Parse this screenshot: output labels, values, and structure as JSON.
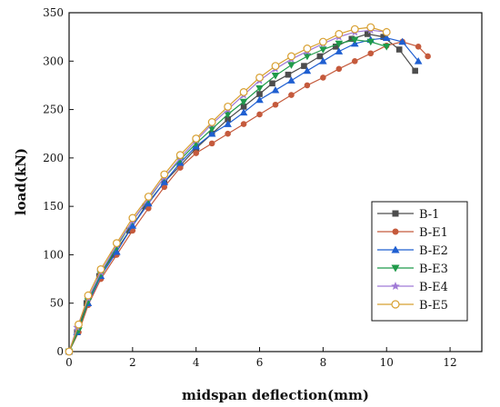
{
  "chart_data": {
    "type": "line",
    "title": "",
    "xlabel": "midspan deflection(mm)",
    "ylabel": "load(kN)",
    "xlim": [
      0,
      13
    ],
    "ylim": [
      0,
      350
    ],
    "xticks": [
      0,
      2,
      4,
      6,
      8,
      10,
      12
    ],
    "yticks": [
      0,
      50,
      100,
      150,
      200,
      250,
      300,
      350
    ],
    "grid": false,
    "legend_position": "bottom-right",
    "series": [
      {
        "name": "B-1",
        "color": "#4d4d4d",
        "marker": "square",
        "points": [
          [
            0,
            0
          ],
          [
            0.25,
            20
          ],
          [
            0.55,
            50
          ],
          [
            0.95,
            78
          ],
          [
            1.4,
            100
          ],
          [
            1.9,
            125
          ],
          [
            2.4,
            150
          ],
          [
            3.0,
            175
          ],
          [
            3.5,
            192
          ],
          [
            4.0,
            210
          ],
          [
            4.5,
            225
          ],
          [
            5.0,
            240
          ],
          [
            5.5,
            253
          ],
          [
            6.0,
            266
          ],
          [
            6.4,
            277
          ],
          [
            6.9,
            286
          ],
          [
            7.4,
            295
          ],
          [
            7.9,
            305
          ],
          [
            8.4,
            315
          ],
          [
            8.9,
            323
          ],
          [
            9.4,
            328
          ],
          [
            9.9,
            325
          ],
          [
            10.4,
            312
          ],
          [
            10.9,
            290
          ]
        ]
      },
      {
        "name": "B-E1",
        "color": "#c55a3c",
        "marker": "circle",
        "points": [
          [
            0,
            0
          ],
          [
            0.3,
            20
          ],
          [
            0.6,
            48
          ],
          [
            1.0,
            75
          ],
          [
            1.5,
            100
          ],
          [
            2.0,
            125
          ],
          [
            2.5,
            148
          ],
          [
            3.0,
            170
          ],
          [
            3.5,
            190
          ],
          [
            4.0,
            205
          ],
          [
            4.5,
            215
          ],
          [
            5.0,
            225
          ],
          [
            5.5,
            235
          ],
          [
            6.0,
            245
          ],
          [
            6.5,
            255
          ],
          [
            7.0,
            265
          ],
          [
            7.5,
            275
          ],
          [
            8.0,
            283
          ],
          [
            8.5,
            292
          ],
          [
            9.0,
            300
          ],
          [
            9.5,
            308
          ],
          [
            10.0,
            316
          ],
          [
            10.5,
            320
          ],
          [
            11.0,
            315
          ],
          [
            11.3,
            305
          ]
        ]
      },
      {
        "name": "B-E2",
        "color": "#1f5fd1",
        "marker": "triangle-up",
        "points": [
          [
            0,
            0
          ],
          [
            0.25,
            20
          ],
          [
            0.6,
            50
          ],
          [
            1.0,
            78
          ],
          [
            1.5,
            103
          ],
          [
            2.0,
            130
          ],
          [
            2.5,
            153
          ],
          [
            3.0,
            175
          ],
          [
            3.5,
            195
          ],
          [
            4.0,
            212
          ],
          [
            4.5,
            225
          ],
          [
            5.0,
            235
          ],
          [
            5.5,
            247
          ],
          [
            6.0,
            260
          ],
          [
            6.5,
            270
          ],
          [
            7.0,
            280
          ],
          [
            7.5,
            290
          ],
          [
            8.0,
            300
          ],
          [
            8.5,
            310
          ],
          [
            9.0,
            318
          ],
          [
            9.5,
            322
          ],
          [
            10.0,
            324
          ],
          [
            10.5,
            320
          ],
          [
            11.0,
            300
          ]
        ]
      },
      {
        "name": "B-E3",
        "color": "#1f9a4a",
        "marker": "triangle-down",
        "points": [
          [
            0,
            0
          ],
          [
            0.3,
            22
          ],
          [
            0.6,
            52
          ],
          [
            1.0,
            80
          ],
          [
            1.5,
            108
          ],
          [
            2.0,
            135
          ],
          [
            2.5,
            157
          ],
          [
            3.0,
            180
          ],
          [
            3.5,
            198
          ],
          [
            4.0,
            215
          ],
          [
            4.5,
            230
          ],
          [
            5.0,
            245
          ],
          [
            5.5,
            258
          ],
          [
            6.0,
            272
          ],
          [
            6.5,
            285
          ],
          [
            7.0,
            296
          ],
          [
            7.5,
            305
          ],
          [
            8.0,
            312
          ],
          [
            8.5,
            318
          ],
          [
            9.0,
            322
          ],
          [
            9.5,
            320
          ],
          [
            10.0,
            315
          ]
        ]
      },
      {
        "name": "B-E4",
        "color": "#a07ad6",
        "marker": "star",
        "points": [
          [
            0,
            0
          ],
          [
            0.25,
            25
          ],
          [
            0.6,
            55
          ],
          [
            1.0,
            82
          ],
          [
            1.5,
            110
          ],
          [
            2.0,
            135
          ],
          [
            2.5,
            158
          ],
          [
            3.0,
            180
          ],
          [
            3.5,
            200
          ],
          [
            4.0,
            218
          ],
          [
            4.5,
            235
          ],
          [
            5.0,
            250
          ],
          [
            5.5,
            265
          ],
          [
            6.0,
            280
          ],
          [
            6.5,
            292
          ],
          [
            7.0,
            302
          ],
          [
            7.5,
            310
          ],
          [
            8.0,
            318
          ],
          [
            8.5,
            325
          ],
          [
            9.0,
            330
          ],
          [
            9.5,
            332
          ],
          [
            10.0,
            330
          ]
        ]
      },
      {
        "name": "B-E5",
        "color": "#d8a030",
        "marker": "circle-open",
        "points": [
          [
            0,
            0
          ],
          [
            0.3,
            28
          ],
          [
            0.6,
            58
          ],
          [
            1.0,
            85
          ],
          [
            1.5,
            112
          ],
          [
            2.0,
            138
          ],
          [
            2.5,
            160
          ],
          [
            3.0,
            183
          ],
          [
            3.5,
            203
          ],
          [
            4.0,
            220
          ],
          [
            4.5,
            237
          ],
          [
            5.0,
            253
          ],
          [
            5.5,
            268
          ],
          [
            6.0,
            283
          ],
          [
            6.5,
            295
          ],
          [
            7.0,
            305
          ],
          [
            7.5,
            313
          ],
          [
            8.0,
            320
          ],
          [
            8.5,
            328
          ],
          [
            9.0,
            333
          ],
          [
            9.5,
            335
          ],
          [
            10.0,
            330
          ]
        ]
      }
    ]
  }
}
